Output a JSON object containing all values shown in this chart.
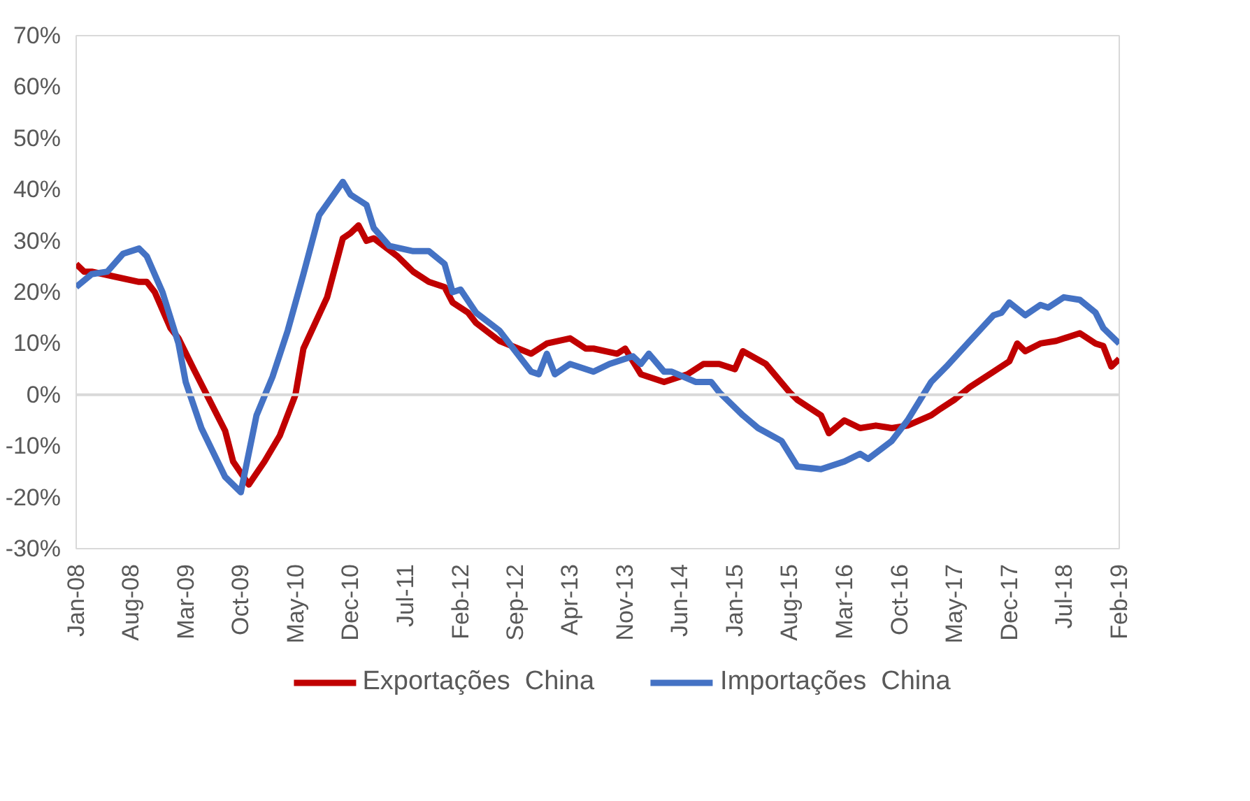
{
  "chart_data": {
    "type": "line",
    "xlim": [
      "2008-01",
      "2019-02"
    ],
    "xticks": [
      {
        "value": "2008-01",
        "label": "Jan-08"
      },
      {
        "value": "2008-08",
        "label": "Aug-08"
      },
      {
        "value": "2009-03",
        "label": "Mar-09"
      },
      {
        "value": "2009-10",
        "label": "Oct-09"
      },
      {
        "value": "2010-05",
        "label": "May-10"
      },
      {
        "value": "2010-12",
        "label": "Dec-10"
      },
      {
        "value": "2011-07",
        "label": "Jul-11"
      },
      {
        "value": "2012-02",
        "label": "Feb-12"
      },
      {
        "value": "2012-09",
        "label": "Sep-12"
      },
      {
        "value": "2013-04",
        "label": "Apr-13"
      },
      {
        "value": "2013-11",
        "label": "Nov-13"
      },
      {
        "value": "2014-06",
        "label": "Jun-14"
      },
      {
        "value": "2015-01",
        "label": "Jan-15"
      },
      {
        "value": "2015-08",
        "label": "Aug-15"
      },
      {
        "value": "2016-03",
        "label": "Mar-16"
      },
      {
        "value": "2016-10",
        "label": "Oct-16"
      },
      {
        "value": "2017-05",
        "label": "May-17"
      },
      {
        "value": "2017-12",
        "label": "Dec-17"
      },
      {
        "value": "2018-07",
        "label": "Jul-18"
      },
      {
        "value": "2019-02",
        "label": "Feb-19"
      }
    ],
    "ylim": [
      -30,
      70
    ],
    "yticks": [
      {
        "value": -30,
        "label": "-30%"
      },
      {
        "value": -20,
        "label": "-20%"
      },
      {
        "value": -10,
        "label": "-10%"
      },
      {
        "value": 0,
        "label": "0%"
      },
      {
        "value": 10,
        "label": "10%"
      },
      {
        "value": 20,
        "label": "20%"
      },
      {
        "value": 30,
        "label": "30%"
      },
      {
        "value": 40,
        "label": "40%"
      },
      {
        "value": 50,
        "label": "50%"
      },
      {
        "value": 60,
        "label": "60%"
      },
      {
        "value": 70,
        "label": "70%"
      }
    ],
    "grid": false,
    "legend": "bottom",
    "ref_lines": [
      {
        "axis": "y",
        "value": 0,
        "color": "#d9d9d9"
      }
    ],
    "series": [
      {
        "name": "Exportações  China",
        "color": "#c00000",
        "x": [
          "2008-01",
          "2008-02",
          "2008-03",
          "2008-06",
          "2008-09",
          "2008-10",
          "2008-11",
          "2009-01",
          "2009-02",
          "2009-04",
          "2009-06",
          "2009-08",
          "2009-09",
          "2009-11",
          "2010-01",
          "2010-03",
          "2010-05",
          "2010-06",
          "2010-09",
          "2010-11",
          "2010-12",
          "2011-01",
          "2011-02",
          "2011-03",
          "2011-06",
          "2011-08",
          "2011-10",
          "2011-12",
          "2012-01",
          "2012-03",
          "2012-04",
          "2012-07",
          "2012-11",
          "2013-01",
          "2013-04",
          "2013-06",
          "2013-07",
          "2013-10",
          "2013-11",
          "2014-01",
          "2014-04",
          "2014-07",
          "2014-09",
          "2014-11",
          "2015-01",
          "2015-02",
          "2015-05",
          "2015-08",
          "2015-09",
          "2015-12",
          "2016-01",
          "2016-03",
          "2016-05",
          "2016-07",
          "2016-09",
          "2016-11",
          "2017-02",
          "2017-03",
          "2017-05",
          "2017-07",
          "2017-10",
          "2017-12",
          "2018-01",
          "2018-02",
          "2018-04",
          "2018-06",
          "2018-09",
          "2018-11",
          "2018-12",
          "2019-01",
          "2019-02"
        ],
        "values": [
          25.5,
          24,
          24,
          23,
          22,
          22,
          20,
          13,
          11,
          5,
          -1,
          -7,
          -13,
          -17.5,
          -13,
          -8,
          0,
          9,
          19,
          30.5,
          31.5,
          33,
          30,
          30.5,
          27,
          24,
          22,
          21,
          18,
          16,
          14,
          10.5,
          8,
          10,
          11,
          9,
          9,
          8,
          9,
          4,
          2.5,
          4,
          6,
          6,
          5,
          8.5,
          6,
          0.5,
          -1,
          -4,
          -7.5,
          -5,
          -6.5,
          -6,
          -6.5,
          -6,
          -4,
          -3,
          -1,
          1.5,
          4.5,
          6.5,
          10,
          8.5,
          10,
          10.5,
          12,
          10,
          9.5,
          5.5,
          7
        ]
      },
      {
        "name": "Importações  China",
        "color": "#4472c4",
        "x": [
          "2008-01",
          "2008-03",
          "2008-05",
          "2008-07",
          "2008-09",
          "2008-10",
          "2008-12",
          "2009-02",
          "2009-03",
          "2009-05",
          "2009-08",
          "2009-10",
          "2009-12",
          "2010-02",
          "2010-04",
          "2010-06",
          "2010-08",
          "2010-11",
          "2010-12",
          "2011-02",
          "2011-03",
          "2011-05",
          "2011-08",
          "2011-10",
          "2011-12",
          "2012-01",
          "2012-02",
          "2012-04",
          "2012-07",
          "2012-11",
          "2012-12",
          "2013-01",
          "2013-02",
          "2013-04",
          "2013-07",
          "2013-09",
          "2013-12",
          "2014-01",
          "2014-02",
          "2014-04",
          "2014-05",
          "2014-08",
          "2014-10",
          "2014-11",
          "2015-02",
          "2015-04",
          "2015-07",
          "2015-09",
          "2015-12",
          "2016-03",
          "2016-05",
          "2016-06",
          "2016-09",
          "2016-11",
          "2017-02",
          "2017-04",
          "2017-07",
          "2017-10",
          "2017-11",
          "2017-12",
          "2018-02",
          "2018-04",
          "2018-05",
          "2018-07",
          "2018-09",
          "2018-11",
          "2018-12",
          "2019-02"
        ],
        "values": [
          21,
          23.5,
          24,
          27.5,
          28.5,
          27,
          20,
          10,
          2.5,
          -6.5,
          -16,
          -19,
          -4,
          3.5,
          12.5,
          23.5,
          35,
          41.5,
          39,
          37,
          32.5,
          29,
          28,
          28,
          25.5,
          20,
          20.5,
          16,
          12.5,
          4.5,
          4,
          8,
          4,
          6,
          4.5,
          6,
          7.5,
          6,
          8,
          4.5,
          4.5,
          2.5,
          2.5,
          0.5,
          -4,
          -6.5,
          -9,
          -14,
          -14.5,
          -13,
          -11.5,
          -12.5,
          -9,
          -5,
          2.5,
          5.5,
          10.5,
          15.5,
          16,
          18,
          15.5,
          17.5,
          17,
          19,
          18.5,
          16,
          13,
          10
        ]
      }
    ]
  }
}
